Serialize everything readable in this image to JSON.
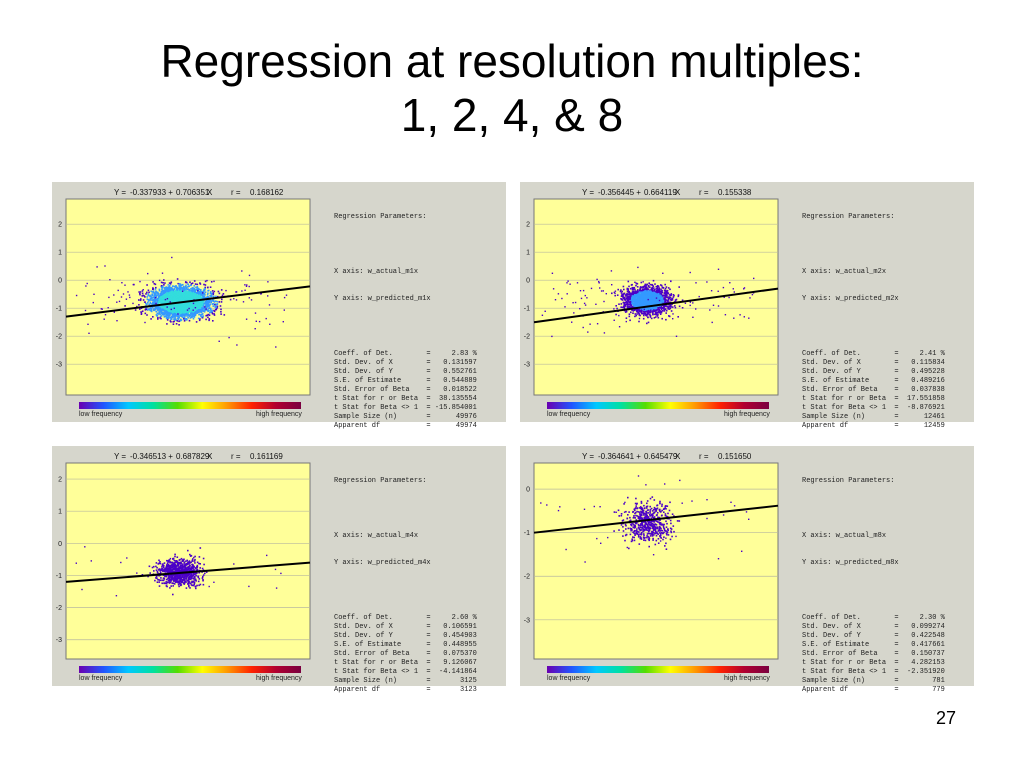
{
  "slide": {
    "title_line1": "Regression at resolution multiples:",
    "title_line2": "1, 2, 4, & 8",
    "page_number": "27"
  },
  "legend": {
    "low_label": "low frequency",
    "high_label": "high frequency"
  },
  "colors": {
    "plot_bg": "#ffff99",
    "panel_bg": "#d6d6cc",
    "point_low": "#4b00c8",
    "point_mid": "#3399ff",
    "point_high": "#33dddd",
    "line": "#000000"
  },
  "chart_data": [
    {
      "type": "scatter",
      "equation": {
        "y_label": "Y =",
        "intercept": "-0.337933 +",
        "slope": "0.706351",
        "x_label": "X",
        "r_label": "r =",
        "r_value": "0.168162"
      },
      "ylim": [
        -4.1,
        2.9
      ],
      "yticks": [
        "2",
        "1",
        "0",
        "-1",
        "-2",
        "-3"
      ],
      "cloud": {
        "center": [
          -0.08,
          -0.75
        ],
        "spread": [
          0.28,
          0.5
        ],
        "density": "high"
      },
      "line": {
        "y_left": -1.3,
        "y_right": -0.22
      },
      "params": {
        "header": "Regression Parameters:",
        "x_axis": "X axis: w_actual_m1x",
        "y_axis": "Y axis: w_predicted_m1x",
        "rows": [
          [
            "Coeff. of Det.",
            "=",
            "2.83 %"
          ],
          [
            "Std. Dev. of X",
            "=",
            "0.131597"
          ],
          [
            "Std. Dev. of Y",
            "=",
            "0.552761"
          ],
          [
            "S.E. of Estimate",
            "=",
            "0.544889"
          ],
          [
            "Std. Error of Beta",
            "=",
            "0.018522"
          ],
          [
            "t Stat for r or Beta",
            "=",
            "38.135554"
          ],
          [
            "t Stat for Beta <> 1",
            "=",
            "-15.854001"
          ],
          [
            "Sample Size (n)",
            "=",
            "49976"
          ],
          [
            "Apparent df",
            "=",
            "49974"
          ]
        ]
      }
    },
    {
      "type": "scatter",
      "equation": {
        "y_label": "Y =",
        "intercept": "-0.356445 +",
        "slope": "0.664119",
        "x_label": "X",
        "r_label": "r =",
        "r_value": "0.155338"
      },
      "ylim": [
        -4.1,
        2.9
      ],
      "yticks": [
        "2",
        "1",
        "0",
        "-1",
        "-2",
        "-3"
      ],
      "cloud": {
        "center": [
          -0.1,
          -0.7
        ],
        "spread": [
          0.22,
          0.45
        ],
        "density": "medium"
      },
      "line": {
        "y_left": -1.5,
        "y_right": -0.3
      },
      "params": {
        "header": "Regression Parameters:",
        "x_axis": "X axis: w_actual_m2x",
        "y_axis": "Y axis: w_predicted_m2x",
        "rows": [
          [
            "Coeff. of Det.",
            "=",
            "2.41 %"
          ],
          [
            "Std. Dev. of X",
            "=",
            "0.115834"
          ],
          [
            "Std. Dev. of Y",
            "=",
            "0.495228"
          ],
          [
            "S.E. of Estimate",
            "=",
            "0.489216"
          ],
          [
            "Std. Error of Beta",
            "=",
            "0.037838"
          ],
          [
            "t Stat for r or Beta",
            "=",
            "17.551858"
          ],
          [
            "t Stat for Beta <> 1",
            "=",
            "-8.876921"
          ],
          [
            "Sample Size (n)",
            "=",
            "12461"
          ],
          [
            "Apparent df",
            "=",
            "12459"
          ]
        ]
      }
    },
    {
      "type": "scatter",
      "equation": {
        "y_label": "Y =",
        "intercept": "-0.346513 +",
        "slope": "0.687829",
        "x_label": "X",
        "r_label": "r =",
        "r_value": "0.161169"
      },
      "ylim": [
        -3.6,
        2.5
      ],
      "yticks": [
        "2",
        "1",
        "0",
        "-1",
        "-2",
        "-3"
      ],
      "cloud": {
        "center": [
          -0.1,
          -0.9
        ],
        "spread": [
          0.2,
          0.38
        ],
        "density": "low"
      },
      "line": {
        "y_left": -1.2,
        "y_right": -0.6
      },
      "params": {
        "header": "Regression Parameters:",
        "x_axis": "X axis: w_actual_m4x",
        "y_axis": "Y axis: w_predicted_m4x",
        "rows": [
          [
            "Coeff. of Det.",
            "=",
            "2.60 %"
          ],
          [
            "Std. Dev. of X",
            "=",
            "0.106591"
          ],
          [
            "Std. Dev. of Y",
            "=",
            "0.454903"
          ],
          [
            "S.E. of Estimate",
            "=",
            "0.448955"
          ],
          [
            "Std. Error of Beta",
            "=",
            "0.075370"
          ],
          [
            "t Stat for r or Beta",
            "=",
            "9.126067"
          ],
          [
            "t Stat for Beta <> 1",
            "=",
            "-4.141864"
          ],
          [
            "Sample Size (n)",
            "=",
            "3125"
          ],
          [
            "Apparent df",
            "=",
            "3123"
          ]
        ]
      }
    },
    {
      "type": "scatter",
      "equation": {
        "y_label": "Y =",
        "intercept": "-0.364641 +",
        "slope": "0.645479",
        "x_label": "X",
        "r_label": "r =",
        "r_value": "0.151650"
      },
      "ylim": [
        -3.9,
        0.6
      ],
      "yticks": [
        "0",
        "-1",
        "-2",
        "-3"
      ],
      "cloud": {
        "center": [
          -0.1,
          -0.75
        ],
        "spread": [
          0.22,
          0.42
        ],
        "density": "sparse"
      },
      "line": {
        "y_left": -1.0,
        "y_right": -0.38
      },
      "params": {
        "header": "Regression Parameters:",
        "x_axis": "X axis: w_actual_m8x",
        "y_axis": "Y axis: w_predicted_m8x",
        "rows": [
          [
            "Coeff. of Det.",
            "=",
            "2.30 %"
          ],
          [
            "Std. Dev. of X",
            "=",
            "0.099274"
          ],
          [
            "Std. Dev. of Y",
            "=",
            "0.422548"
          ],
          [
            "S.E. of Estimate",
            "=",
            "0.417661"
          ],
          [
            "Std. Error of Beta",
            "=",
            "0.150737"
          ],
          [
            "t Stat for r or Beta",
            "=",
            "4.282153"
          ],
          [
            "t Stat for Beta <> 1",
            "=",
            "-2.351920"
          ],
          [
            "Sample Size (n)",
            "=",
            "781"
          ],
          [
            "Apparent df",
            "=",
            "779"
          ]
        ]
      }
    }
  ]
}
